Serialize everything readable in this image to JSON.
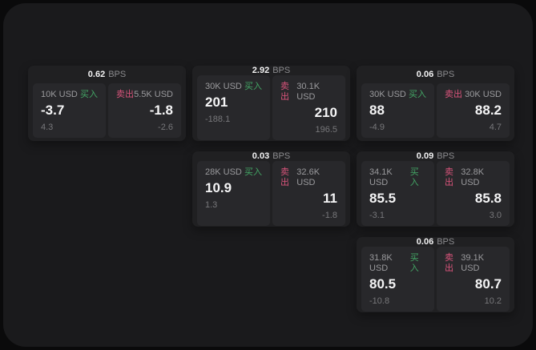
{
  "page": {
    "background": "#0a0a0b",
    "panel_background": "#1a1a1c"
  },
  "colors": {
    "card_bg": "#202022",
    "subcard_bg": "#28282b",
    "text_primary": "#f5f5f6",
    "text_secondary": "#9a9a9d",
    "text_dim": "#77777a",
    "buy_green": "#43a665",
    "sell_pink": "#d9547b"
  },
  "labels": {
    "bps_unit": "BPS",
    "buy": "买入",
    "sell": "卖出"
  },
  "cards": [
    {
      "bps": "0.62",
      "col": 1,
      "row": 1,
      "buy": {
        "size": "10K USD",
        "price": "-3.7",
        "delta": "4.3"
      },
      "sell": {
        "size": "5.5K USD",
        "price": "-1.8",
        "delta": "-2.6"
      }
    },
    {
      "bps": "2.92",
      "col": 2,
      "row": 1,
      "buy": {
        "size": "30K USD",
        "price": "201",
        "delta": "-188.1"
      },
      "sell": {
        "size": "30.1K USD",
        "price": "210",
        "delta": "196.5"
      }
    },
    {
      "bps": "0.06",
      "col": 3,
      "row": 1,
      "buy": {
        "size": "30K USD",
        "price": "88",
        "delta": "-4.9"
      },
      "sell": {
        "size": "30K USD",
        "price": "88.2",
        "delta": "4.7"
      }
    },
    {
      "bps": "0.03",
      "col": 2,
      "row": 2,
      "buy": {
        "size": "28K USD",
        "price": "10.9",
        "delta": "1.3"
      },
      "sell": {
        "size": "32.6K USD",
        "price": "11",
        "delta": "-1.8"
      }
    },
    {
      "bps": "0.09",
      "col": 3,
      "row": 2,
      "buy": {
        "size": "34.1K USD",
        "price": "85.5",
        "delta": "-3.1"
      },
      "sell": {
        "size": "32.8K USD",
        "price": "85.8",
        "delta": "3.0"
      }
    },
    {
      "bps": "0.06",
      "col": 3,
      "row": 3,
      "buy": {
        "size": "31.8K USD",
        "price": "80.5",
        "delta": "-10.8"
      },
      "sell": {
        "size": "39.1K USD",
        "price": "80.7",
        "delta": "10.2"
      }
    }
  ]
}
